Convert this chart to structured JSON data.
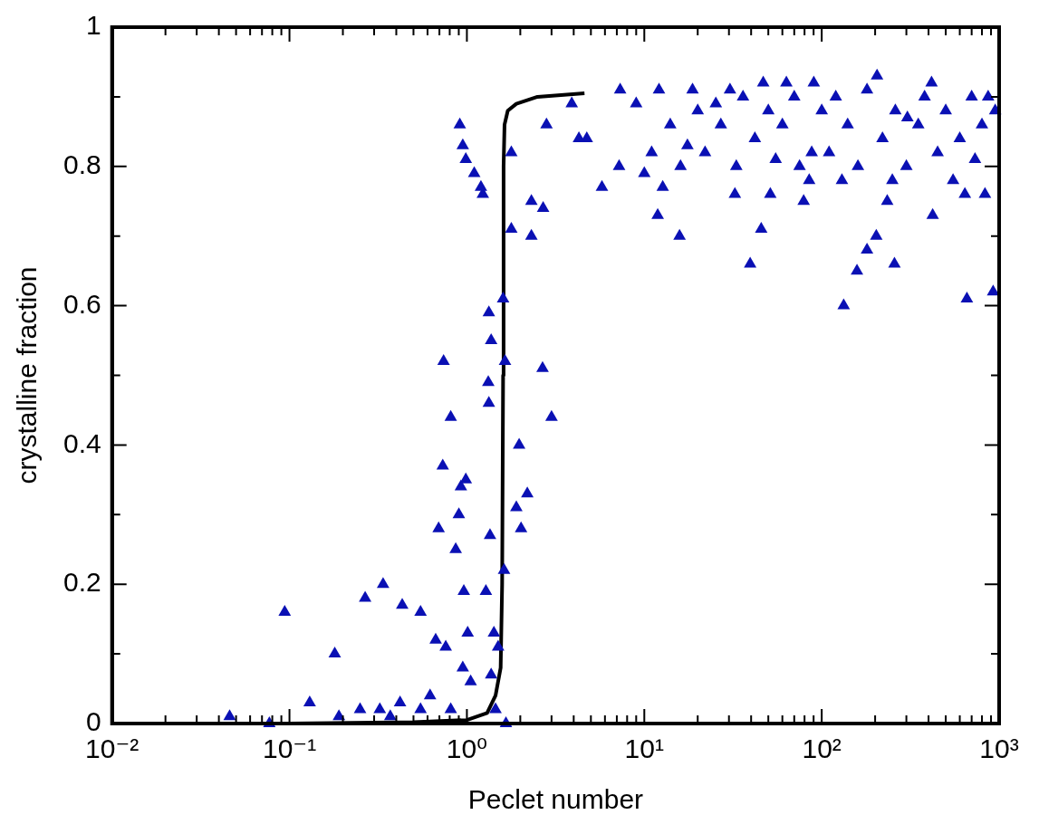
{
  "chart_data": {
    "type": "scatter",
    "xlabel": "Peclet number",
    "ylabel": "crystalline fraction",
    "log": "x",
    "grid": false,
    "legend": false,
    "xlim": [
      0.01,
      1000
    ],
    "ylim": [
      0,
      1
    ],
    "xticks": [
      {
        "value": 0.01,
        "label": "10⁻²"
      },
      {
        "value": 0.02,
        "label": null
      },
      {
        "value": 0.03,
        "label": null
      },
      {
        "value": 0.04,
        "label": null
      },
      {
        "value": 0.05,
        "label": null
      },
      {
        "value": 0.06,
        "label": null
      },
      {
        "value": 0.07,
        "label": null
      },
      {
        "value": 0.08,
        "label": null
      },
      {
        "value": 0.09,
        "label": null
      },
      {
        "value": 0.1,
        "label": "10⁻¹"
      },
      {
        "value": 0.2,
        "label": null
      },
      {
        "value": 0.3,
        "label": null
      },
      {
        "value": 0.4,
        "label": null
      },
      {
        "value": 0.5,
        "label": null
      },
      {
        "value": 0.6,
        "label": null
      },
      {
        "value": 0.7,
        "label": null
      },
      {
        "value": 0.8,
        "label": null
      },
      {
        "value": 0.9,
        "label": null
      },
      {
        "value": 1,
        "label": "10⁰"
      },
      {
        "value": 2,
        "label": null
      },
      {
        "value": 3,
        "label": null
      },
      {
        "value": 4,
        "label": null
      },
      {
        "value": 5,
        "label": null
      },
      {
        "value": 6,
        "label": null
      },
      {
        "value": 7,
        "label": null
      },
      {
        "value": 8,
        "label": null
      },
      {
        "value": 9,
        "label": null
      },
      {
        "value": 10,
        "label": "10¹"
      },
      {
        "value": 20,
        "label": null
      },
      {
        "value": 30,
        "label": null
      },
      {
        "value": 40,
        "label": null
      },
      {
        "value": 50,
        "label": null
      },
      {
        "value": 60,
        "label": null
      },
      {
        "value": 70,
        "label": null
      },
      {
        "value": 80,
        "label": null
      },
      {
        "value": 90,
        "label": null
      },
      {
        "value": 100,
        "label": "10²"
      },
      {
        "value": 200,
        "label": null
      },
      {
        "value": 300,
        "label": null
      },
      {
        "value": 400,
        "label": null
      },
      {
        "value": 500,
        "label": null
      },
      {
        "value": 600,
        "label": null
      },
      {
        "value": 700,
        "label": null
      },
      {
        "value": 800,
        "label": null
      },
      {
        "value": 900,
        "label": null
      },
      {
        "value": 1000,
        "label": "10³"
      }
    ],
    "yticks": [
      0,
      {
        "value": 0.1,
        "label": null
      },
      0.2,
      {
        "value": 0.3,
        "label": null
      },
      0.4,
      {
        "value": 0.5,
        "label": null
      },
      0.6,
      {
        "value": 0.7,
        "label": null
      },
      0.8,
      {
        "value": 0.9,
        "label": null
      },
      1
    ],
    "series": [
      {
        "marker": "triangle",
        "color": "#0a10b4",
        "x": [
          0.094,
          0.077,
          0.046,
          0.13,
          0.18,
          0.267,
          0.337,
          0.432,
          0.548,
          0.667,
          0.693,
          0.731,
          0.76,
          0.811,
          0.739,
          0.865,
          0.901,
          0.925,
          0.986,
          0.961,
          1.01,
          0.948,
          1.05,
          0.912,
          0.948,
          0.986,
          1.1,
          1.2,
          1.23,
          1.33,
          1.37,
          1.32,
          1.33,
          1.35,
          1.28,
          1.42,
          1.37,
          1.5,
          1.6,
          1.62,
          1.45,
          1.66,
          1.64,
          1.78,
          1.78,
          1.9,
          1.97,
          2.02,
          2.19,
          2.31,
          2.31,
          2.67,
          2.69,
          3.0,
          2.81,
          4.74,
          3.9,
          0.25,
          0.323,
          0.42,
          0.548,
          0.62,
          0.811,
          0.37,
          0.19,
          4.28,
          5.77,
          7.21,
          7.31,
          10,
          11.9,
          12.7,
          15.8,
          12.1,
          18.7,
          17.5,
          25.3,
          30.4,
          32.4,
          39.5,
          45.6,
          51.3,
          46.8,
          63.2,
          90.2,
          79.1,
          87.8,
          133,
          158,
          180,
          203,
          257,
          234,
          205,
          304,
          422,
          416,
          641,
          658,
          925,
          832,
          731,
          867,
          9,
          11,
          14,
          16,
          20,
          22,
          27,
          33,
          36,
          42,
          50,
          55,
          60,
          70,
          75,
          100,
          110,
          120,
          140,
          160,
          180,
          220,
          260,
          300,
          350,
          380,
          450,
          500,
          550,
          600,
          700,
          800,
          950,
          250,
          130,
          85
        ],
        "values": [
          0.16,
          0,
          0.01,
          0.03,
          0.1,
          0.18,
          0.2,
          0.17,
          0.16,
          0.12,
          0.28,
          0.37,
          0.11,
          0.44,
          0.52,
          0.25,
          0.3,
          0.34,
          0.35,
          0.19,
          0.13,
          0.08,
          0.06,
          0.86,
          0.83,
          0.81,
          0.79,
          0.77,
          0.76,
          0.59,
          0.55,
          0.49,
          0.46,
          0.27,
          0.19,
          0.13,
          0.07,
          0.11,
          0.61,
          0.22,
          0.02,
          0,
          0.52,
          0.82,
          0.71,
          0.31,
          0.4,
          0.28,
          0.33,
          0.75,
          0.7,
          0.51,
          0.74,
          0.44,
          0.86,
          0.84,
          0.89,
          0.02,
          0.02,
          0.03,
          0.02,
          0.04,
          0.02,
          0.01,
          0.01,
          0.84,
          0.77,
          0.8,
          0.91,
          0.79,
          0.73,
          0.77,
          0.7,
          0.91,
          0.91,
          0.83,
          0.89,
          0.91,
          0.76,
          0.66,
          0.71,
          0.76,
          0.92,
          0.92,
          0.92,
          0.75,
          0.82,
          0.6,
          0.65,
          0.68,
          0.7,
          0.66,
          0.75,
          0.93,
          0.87,
          0.73,
          0.92,
          0.76,
          0.61,
          0.62,
          0.76,
          0.81,
          0.9,
          0.89,
          0.82,
          0.86,
          0.8,
          0.88,
          0.82,
          0.86,
          0.8,
          0.9,
          0.84,
          0.88,
          0.81,
          0.86,
          0.9,
          0.8,
          0.88,
          0.82,
          0.9,
          0.86,
          0.8,
          0.91,
          0.84,
          0.88,
          0.8,
          0.86,
          0.9,
          0.82,
          0.88,
          0.78,
          0.84,
          0.9,
          0.86,
          0.88,
          0.78,
          0.78,
          0.78
        ]
      },
      {
        "type": "line",
        "marker": "none",
        "color": "#000000",
        "x": [
          0.01,
          0.1,
          0.5,
          1,
          1.3,
          1.45,
          1.55,
          1.58,
          1.6,
          1.61,
          1.63,
          1.7,
          1.9,
          2.5,
          4.6
        ],
        "values": [
          0,
          0,
          0.002,
          0.005,
          0.015,
          0.04,
          0.08,
          0.2,
          0.5,
          0.8,
          0.86,
          0.88,
          0.89,
          0.9,
          0.905
        ]
      }
    ]
  }
}
